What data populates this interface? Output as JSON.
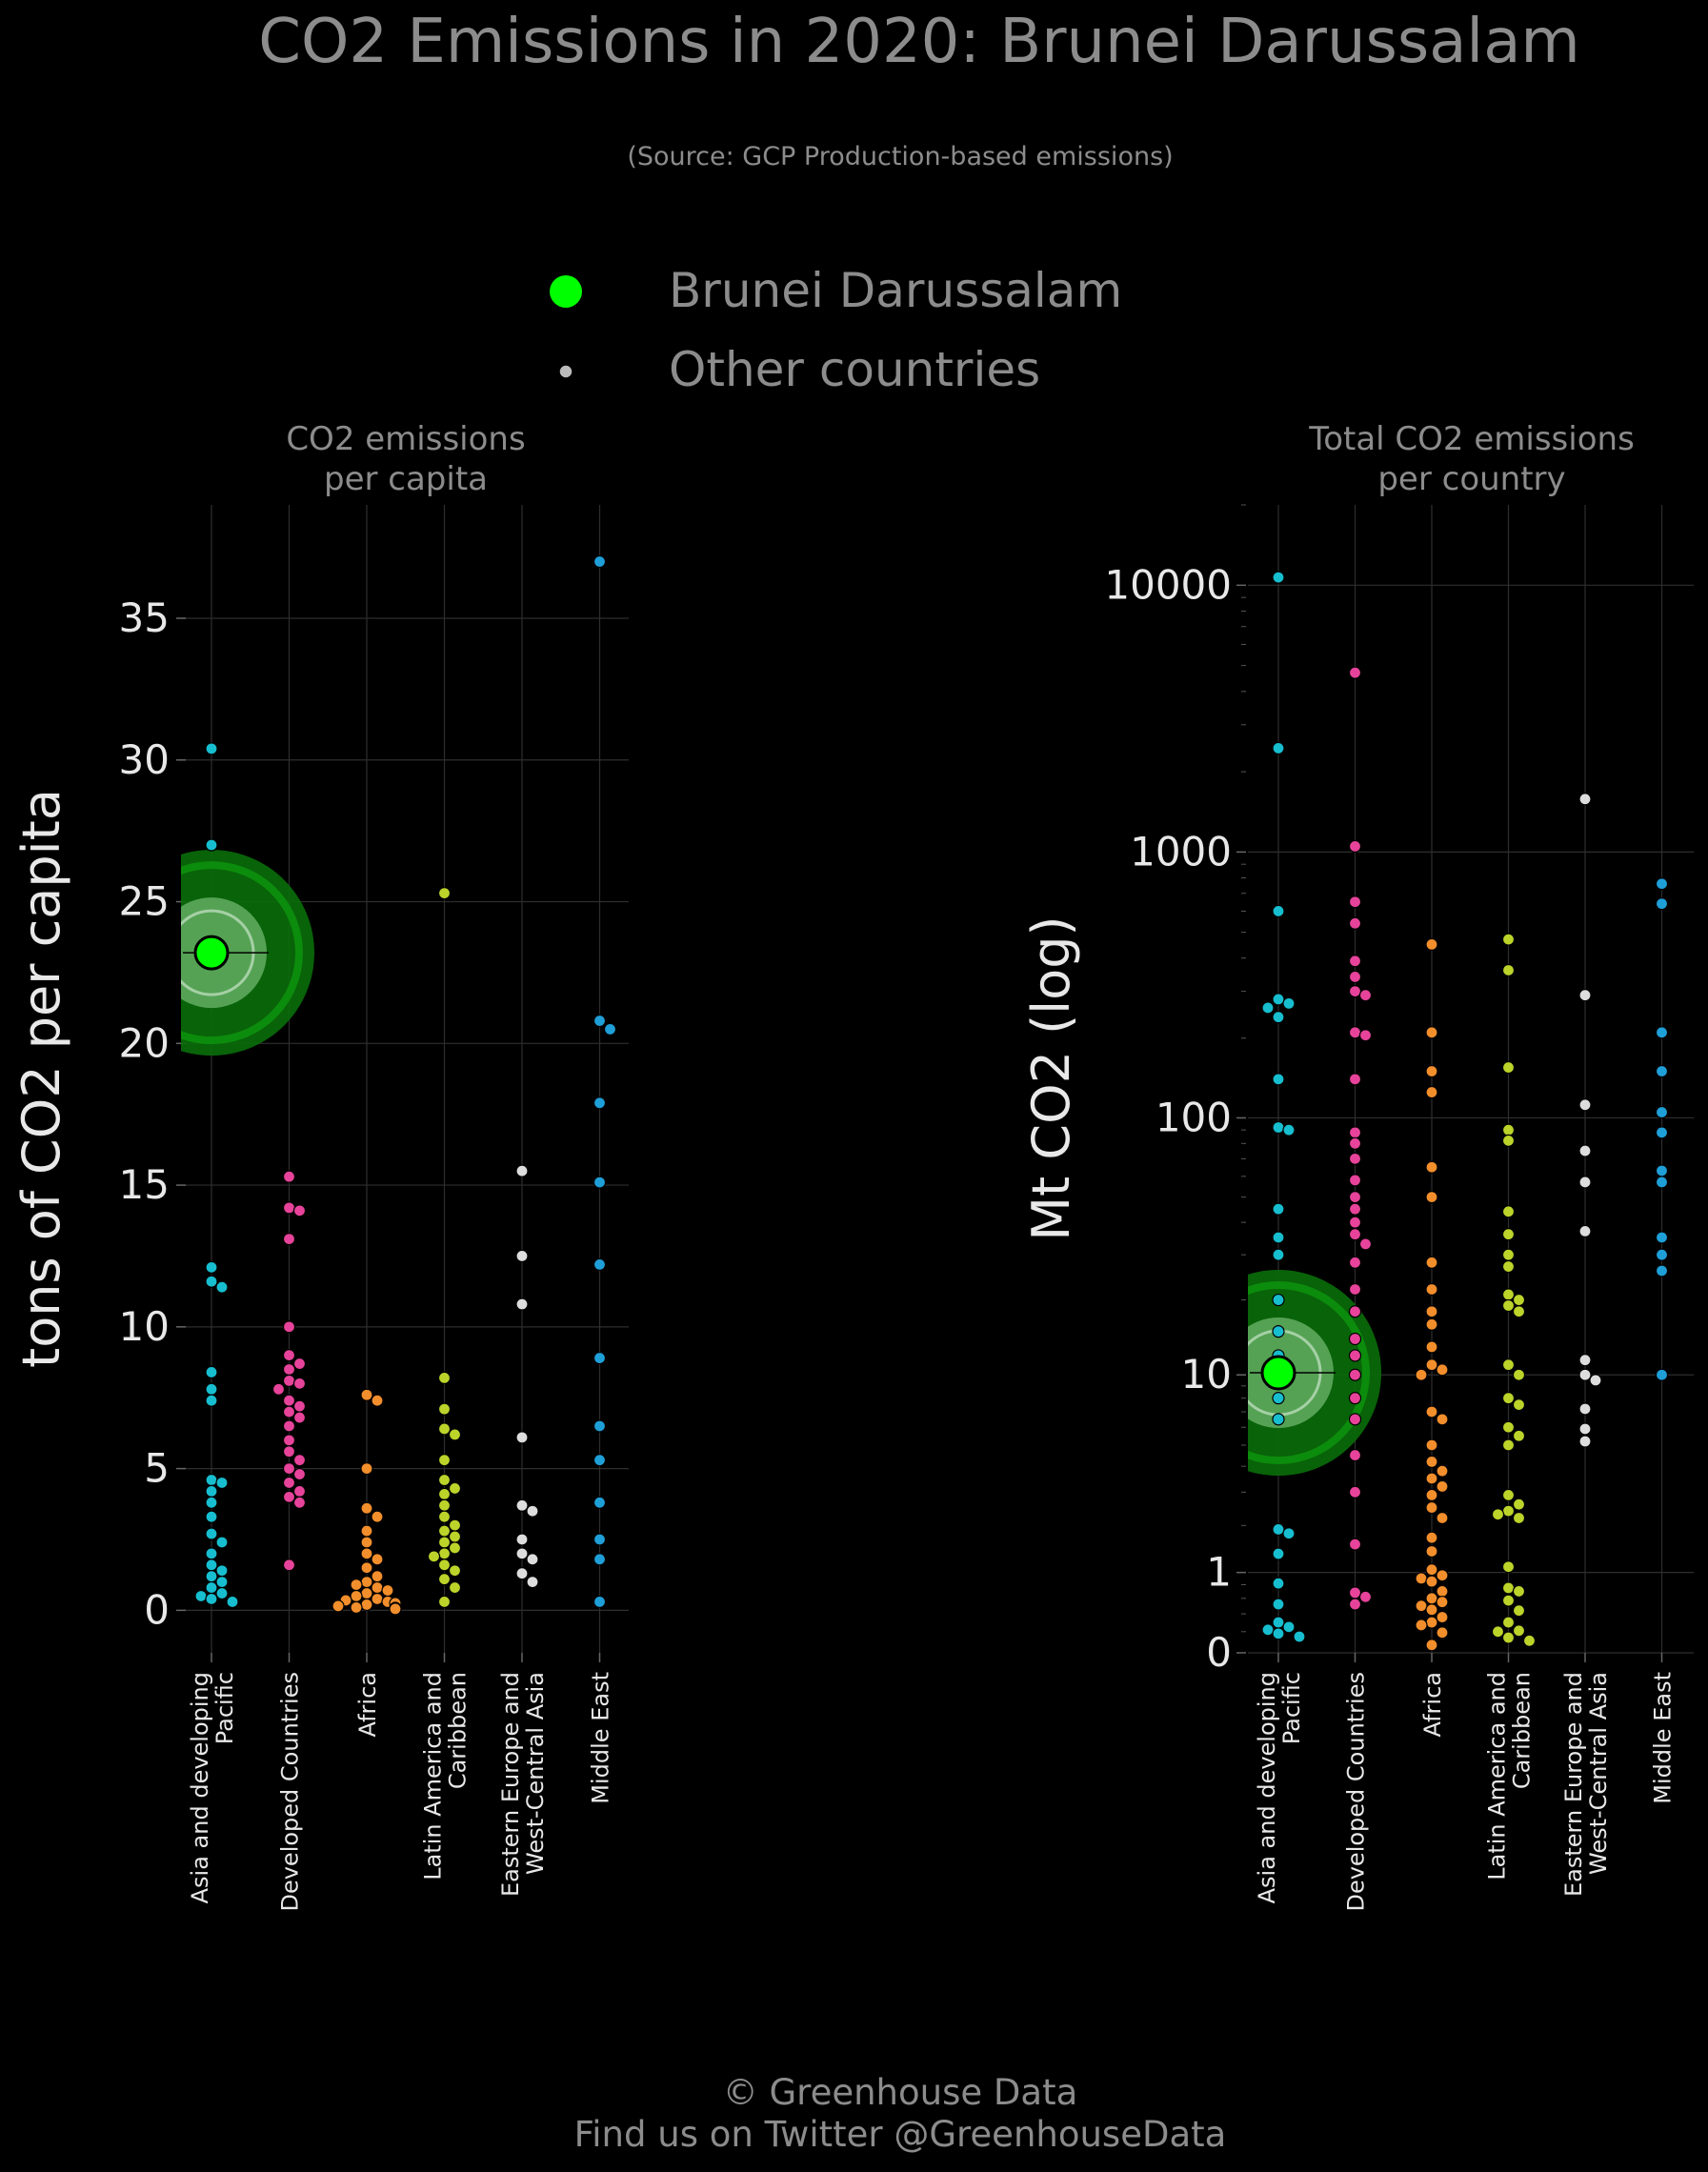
{
  "title": "CO2 Emissions in 2020: Brunei Darussalam",
  "subtitle": "(Source: GCP Production-based emissions)",
  "legend": {
    "highlight_label": "Brunei Darussalam",
    "other_label": "Other countries",
    "highlight_color": "#00ff00",
    "other_color": "#bbbbbb"
  },
  "footer": {
    "line1": "© Greenhouse Data",
    "line2": "Find us on Twitter @GreenhouseData"
  },
  "regions": [
    {
      "label": "Asia and developing Pacific",
      "lines": [
        "Asia and developing",
        "Pacific"
      ],
      "color": "#17becf"
    },
    {
      "label": "Developed Countries",
      "lines": [
        "Developed Countries"
      ],
      "color": "#e7439a"
    },
    {
      "label": "Africa",
      "lines": [
        "Africa"
      ],
      "color": "#f28e2b"
    },
    {
      "label": "Latin America and Caribbean",
      "lines": [
        "Latin America and",
        "Caribbean"
      ],
      "color": "#bcd42a"
    },
    {
      "label": "Eastern Europe and West-Central Asia",
      "lines": [
        "Eastern Europe and",
        "West-Central Asia"
      ],
      "color": "#dddddd"
    },
    {
      "label": "Middle East",
      "lines": [
        "Middle East"
      ],
      "color": "#1f9fd8"
    }
  ],
  "chart_data": [
    {
      "type": "scatter",
      "title": "CO2 emissions\nper capita",
      "ylabel": "tons of CO2 per capita",
      "ylim": [
        -1.5,
        39
      ],
      "yticks": [
        0,
        5,
        10,
        15,
        20,
        25,
        30,
        35
      ],
      "ytick_labels": [
        "0",
        "5",
        "10",
        "15",
        "20",
        "25",
        "30",
        "35"
      ],
      "grid": true,
      "highlight": {
        "name": "Brunei Darussalam",
        "region": 0,
        "value": 23.2
      },
      "series": [
        {
          "name": "Asia and developing Pacific",
          "values": [
            30.4,
            27.0,
            12.1,
            11.6,
            11.4,
            8.4,
            7.8,
            7.4,
            4.6,
            4.5,
            4.2,
            3.8,
            3.3,
            2.7,
            2.4,
            2.0,
            1.6,
            1.4,
            1.2,
            1.0,
            0.8,
            0.6,
            0.5,
            0.4,
            0.3
          ]
        },
        {
          "name": "Developed Countries",
          "values": [
            15.3,
            14.2,
            14.1,
            13.1,
            10.0,
            9.0,
            8.7,
            8.5,
            8.1,
            8.0,
            7.8,
            7.4,
            7.2,
            7.0,
            6.8,
            6.5,
            6.0,
            5.6,
            5.3,
            5.0,
            4.8,
            4.5,
            4.2,
            4.0,
            3.8,
            1.6
          ]
        },
        {
          "name": "Africa",
          "values": [
            7.6,
            7.4,
            5.0,
            3.6,
            3.3,
            2.8,
            2.4,
            2.0,
            1.8,
            1.5,
            1.2,
            1.0,
            0.9,
            0.8,
            0.7,
            0.6,
            0.5,
            0.4,
            0.35,
            0.3,
            0.25,
            0.2,
            0.15,
            0.1,
            0.08,
            0.05
          ]
        },
        {
          "name": "Latin America and Caribbean",
          "values": [
            25.3,
            8.2,
            7.1,
            6.4,
            6.2,
            5.3,
            4.6,
            4.3,
            4.1,
            3.7,
            3.3,
            3.0,
            2.8,
            2.6,
            2.4,
            2.2,
            2.0,
            1.9,
            1.6,
            1.4,
            1.1,
            0.8,
            0.3
          ]
        },
        {
          "name": "Eastern Europe and West-Central Asia",
          "values": [
            15.5,
            12.5,
            10.8,
            6.1,
            3.7,
            3.5,
            2.5,
            2.0,
            1.8,
            1.3,
            1.0
          ]
        },
        {
          "name": "Middle East",
          "values": [
            37.0,
            20.8,
            20.5,
            17.9,
            15.1,
            12.2,
            8.9,
            6.5,
            5.3,
            3.8,
            2.5,
            1.8,
            0.3
          ]
        }
      ]
    },
    {
      "type": "scatter",
      "title": "Total CO2 emissions\nper country",
      "ylabel": "Mt CO2 (log)",
      "yscale": "log",
      "ylim": [
        0,
        20000
      ],
      "yticks": [
        0,
        1,
        10,
        100,
        1000,
        10000
      ],
      "ytick_labels": [
        "0",
        "1",
        "10",
        "100",
        "1000",
        "10000"
      ],
      "grid": true,
      "highlight": {
        "name": "Brunei Darussalam",
        "region": 0,
        "value": 10.2
      },
      "series": [
        {
          "name": "Asia and developing Pacific",
          "values": [
            10700,
            2450,
            600,
            280,
            270,
            260,
            240,
            140,
            92,
            90,
            45,
            35,
            30,
            20,
            15,
            12,
            10.5,
            9.5,
            8,
            6.5,
            1.9,
            1.8,
            1.35,
            0.82,
            0.52,
            0.3,
            0.25,
            0.22,
            0.18,
            0.15
          ]
        },
        {
          "name": "Developed Countries",
          "values": [
            4700,
            1050,
            650,
            540,
            390,
            340,
            300,
            290,
            210,
            205,
            140,
            88,
            80,
            70,
            58,
            50,
            45,
            40,
            36,
            33,
            28,
            22,
            18,
            14,
            12,
            10,
            8,
            6.5,
            4.5,
            3,
            1.55,
            0.68,
            0.62,
            0.52
          ]
        },
        {
          "name": "Africa",
          "values": [
            450,
            210,
            150,
            125,
            65,
            50,
            28,
            22,
            18,
            16,
            13,
            11,
            10.5,
            10,
            7,
            6.5,
            5,
            4.2,
            3.8,
            3.5,
            3.2,
            2.9,
            2.5,
            2.2,
            1.7,
            1.4,
            1.05,
            0.95,
            0.9,
            0.85,
            0.7,
            0.6,
            0.55,
            0.5,
            0.45,
            0.36,
            0.3,
            0.27,
            0.19,
            0.07
          ]
        },
        {
          "name": "Latin America and Caribbean",
          "values": [
            470,
            360,
            155,
            90,
            82,
            44,
            36,
            30,
            27,
            21,
            20,
            19,
            18,
            11,
            10,
            8,
            7.5,
            6,
            5.5,
            5,
            2.9,
            2.6,
            2.4,
            2.3,
            2.2,
            1.1,
            0.75,
            0.7,
            0.57,
            0.44,
            0.3,
            0.21,
            0.2,
            0.14,
            0.11
          ]
        },
        {
          "name": "Eastern Europe and West-Central Asia",
          "values": [
            1580,
            290,
            112,
            75,
            57,
            37,
            11.5,
            10,
            9.5,
            7.2,
            5.9,
            5.2
          ]
        },
        {
          "name": "Middle East",
          "values": [
            760,
            640,
            210,
            150,
            105,
            88,
            63,
            57,
            35,
            30,
            26,
            10
          ]
        }
      ]
    }
  ]
}
